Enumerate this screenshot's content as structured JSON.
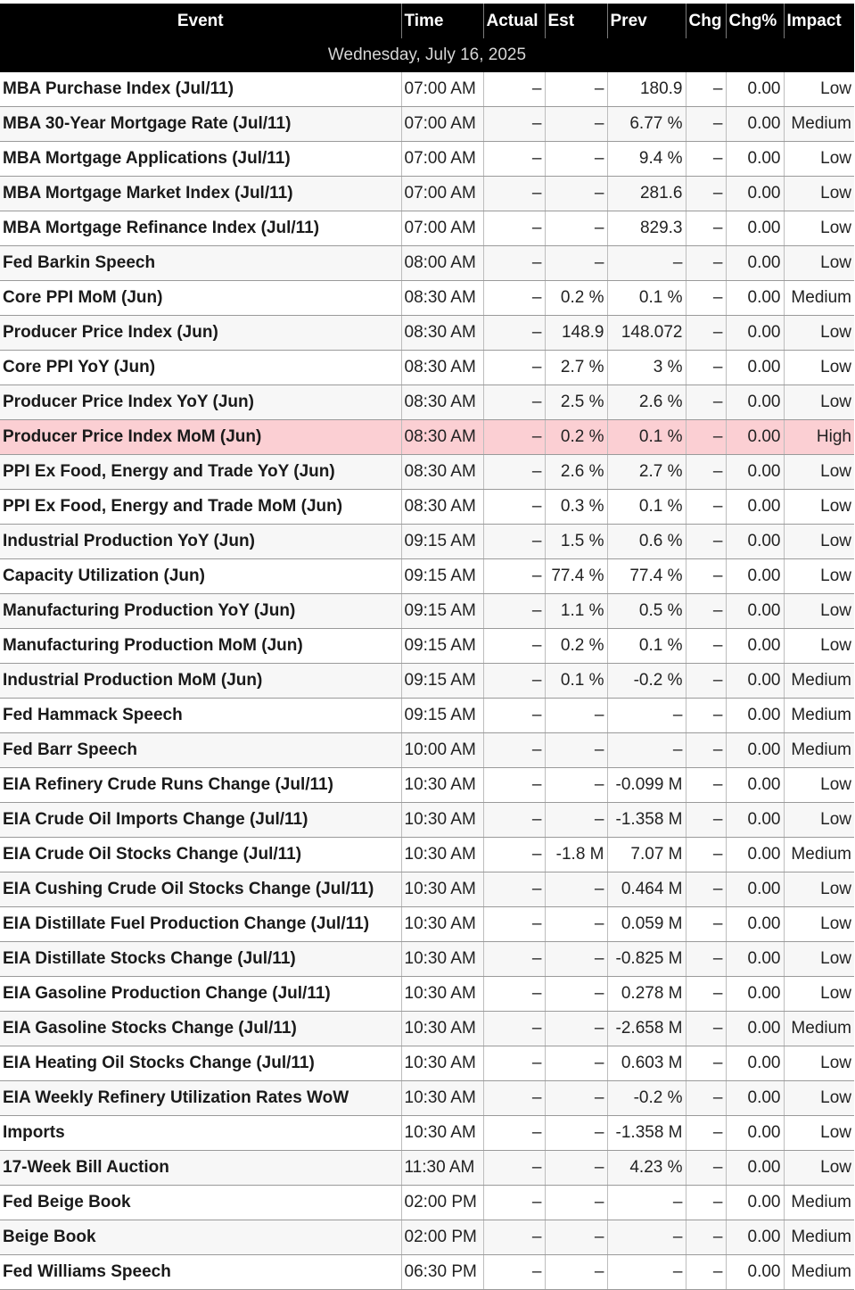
{
  "columns": {
    "event": "Event",
    "time": "Time",
    "actual": "Actual",
    "est": "Est",
    "prev": "Prev",
    "chg": "Chg",
    "chg_pct": "Chg%",
    "impact": "Impact"
  },
  "date_header": "Wednesday, July 16, 2025",
  "highlight_color": "#fbcfd3",
  "rows": [
    {
      "event": "MBA Purchase Index (Jul/11)",
      "time": "07:00 AM",
      "actual": "–",
      "est": "–",
      "prev": "180.9",
      "chg": "–",
      "chg_pct": "0.00",
      "impact": "Low"
    },
    {
      "event": "MBA 30-Year Mortgage Rate (Jul/11)",
      "time": "07:00 AM",
      "actual": "–",
      "est": "–",
      "prev": "6.77 %",
      "chg": "–",
      "chg_pct": "0.00",
      "impact": "Medium"
    },
    {
      "event": "MBA Mortgage Applications (Jul/11)",
      "time": "07:00 AM",
      "actual": "–",
      "est": "–",
      "prev": "9.4 %",
      "chg": "–",
      "chg_pct": "0.00",
      "impact": "Low"
    },
    {
      "event": "MBA Mortgage Market Index (Jul/11)",
      "time": "07:00 AM",
      "actual": "–",
      "est": "–",
      "prev": "281.6",
      "chg": "–",
      "chg_pct": "0.00",
      "impact": "Low"
    },
    {
      "event": "MBA Mortgage Refinance Index (Jul/11)",
      "time": "07:00 AM",
      "actual": "–",
      "est": "–",
      "prev": "829.3",
      "chg": "–",
      "chg_pct": "0.00",
      "impact": "Low"
    },
    {
      "event": "Fed Barkin Speech",
      "time": "08:00 AM",
      "actual": "–",
      "est": "–",
      "prev": "–",
      "chg": "–",
      "chg_pct": "0.00",
      "impact": "Low"
    },
    {
      "event": "Core PPI MoM (Jun)",
      "time": "08:30 AM",
      "actual": "–",
      "est": "0.2 %",
      "prev": "0.1 %",
      "chg": "–",
      "chg_pct": "0.00",
      "impact": "Medium"
    },
    {
      "event": "Producer Price Index (Jun)",
      "time": "08:30 AM",
      "actual": "–",
      "est": "148.9",
      "prev": "148.072",
      "chg": "–",
      "chg_pct": "0.00",
      "impact": "Low"
    },
    {
      "event": "Core PPI YoY (Jun)",
      "time": "08:30 AM",
      "actual": "–",
      "est": "2.7 %",
      "prev": "3 %",
      "chg": "–",
      "chg_pct": "0.00",
      "impact": "Low"
    },
    {
      "event": "Producer Price Index YoY (Jun)",
      "time": "08:30 AM",
      "actual": "–",
      "est": "2.5 %",
      "prev": "2.6 %",
      "chg": "–",
      "chg_pct": "0.00",
      "impact": "Low"
    },
    {
      "event": "Producer Price Index MoM (Jun)",
      "time": "08:30 AM",
      "actual": "–",
      "est": "0.2 %",
      "prev": "0.1 %",
      "chg": "–",
      "chg_pct": "0.00",
      "impact": "High"
    },
    {
      "event": "PPI Ex Food, Energy and Trade YoY (Jun)",
      "time": "08:30 AM",
      "actual": "–",
      "est": "2.6 %",
      "prev": "2.7 %",
      "chg": "–",
      "chg_pct": "0.00",
      "impact": "Low"
    },
    {
      "event": "PPI Ex Food, Energy and Trade MoM (Jun)",
      "time": "08:30 AM",
      "actual": "–",
      "est": "0.3 %",
      "prev": "0.1 %",
      "chg": "–",
      "chg_pct": "0.00",
      "impact": "Low"
    },
    {
      "event": "Industrial Production YoY (Jun)",
      "time": "09:15 AM",
      "actual": "–",
      "est": "1.5 %",
      "prev": "0.6 %",
      "chg": "–",
      "chg_pct": "0.00",
      "impact": "Low"
    },
    {
      "event": "Capacity Utilization (Jun)",
      "time": "09:15 AM",
      "actual": "–",
      "est": "77.4 %",
      "prev": "77.4 %",
      "chg": "–",
      "chg_pct": "0.00",
      "impact": "Low"
    },
    {
      "event": "Manufacturing Production YoY (Jun)",
      "time": "09:15 AM",
      "actual": "–",
      "est": "1.1 %",
      "prev": "0.5 %",
      "chg": "–",
      "chg_pct": "0.00",
      "impact": "Low"
    },
    {
      "event": "Manufacturing Production MoM (Jun)",
      "time": "09:15 AM",
      "actual": "–",
      "est": "0.2 %",
      "prev": "0.1 %",
      "chg": "–",
      "chg_pct": "0.00",
      "impact": "Low"
    },
    {
      "event": "Industrial Production MoM (Jun)",
      "time": "09:15 AM",
      "actual": "–",
      "est": "0.1 %",
      "prev": "-0.2 %",
      "chg": "–",
      "chg_pct": "0.00",
      "impact": "Medium"
    },
    {
      "event": "Fed Hammack Speech",
      "time": "09:15 AM",
      "actual": "–",
      "est": "–",
      "prev": "–",
      "chg": "–",
      "chg_pct": "0.00",
      "impact": "Medium"
    },
    {
      "event": "Fed Barr Speech",
      "time": "10:00 AM",
      "actual": "–",
      "est": "–",
      "prev": "–",
      "chg": "–",
      "chg_pct": "0.00",
      "impact": "Medium"
    },
    {
      "event": "EIA Refinery Crude Runs Change (Jul/11)",
      "time": "10:30 AM",
      "actual": "–",
      "est": "–",
      "prev": "-0.099 M",
      "chg": "–",
      "chg_pct": "0.00",
      "impact": "Low"
    },
    {
      "event": "EIA Crude Oil Imports Change (Jul/11)",
      "time": "10:30 AM",
      "actual": "–",
      "est": "–",
      "prev": "-1.358 M",
      "chg": "–",
      "chg_pct": "0.00",
      "impact": "Low"
    },
    {
      "event": "EIA Crude Oil Stocks Change (Jul/11)",
      "time": "10:30 AM",
      "actual": "–",
      "est": "-1.8 M",
      "prev": "7.07 M",
      "chg": "–",
      "chg_pct": "0.00",
      "impact": "Medium"
    },
    {
      "event": "EIA Cushing Crude Oil Stocks Change (Jul/11)",
      "time": "10:30 AM",
      "actual": "–",
      "est": "–",
      "prev": "0.464 M",
      "chg": "–",
      "chg_pct": "0.00",
      "impact": "Low"
    },
    {
      "event": "EIA Distillate Fuel Production Change (Jul/11)",
      "time": "10:30 AM",
      "actual": "–",
      "est": "–",
      "prev": "0.059 M",
      "chg": "–",
      "chg_pct": "0.00",
      "impact": "Low"
    },
    {
      "event": "EIA Distillate Stocks Change (Jul/11)",
      "time": "10:30 AM",
      "actual": "–",
      "est": "–",
      "prev": "-0.825 M",
      "chg": "–",
      "chg_pct": "0.00",
      "impact": "Low"
    },
    {
      "event": "EIA Gasoline Production Change (Jul/11)",
      "time": "10:30 AM",
      "actual": "–",
      "est": "–",
      "prev": "0.278 M",
      "chg": "–",
      "chg_pct": "0.00",
      "impact": "Low"
    },
    {
      "event": "EIA Gasoline Stocks Change (Jul/11)",
      "time": "10:30 AM",
      "actual": "–",
      "est": "–",
      "prev": "-2.658 M",
      "chg": "–",
      "chg_pct": "0.00",
      "impact": "Medium"
    },
    {
      "event": "EIA Heating Oil Stocks Change (Jul/11)",
      "time": "10:30 AM",
      "actual": "–",
      "est": "–",
      "prev": "0.603 M",
      "chg": "–",
      "chg_pct": "0.00",
      "impact": "Low"
    },
    {
      "event": "EIA Weekly Refinery Utilization Rates WoW",
      "time": "10:30 AM",
      "actual": "–",
      "est": "–",
      "prev": "-0.2 %",
      "chg": "–",
      "chg_pct": "0.00",
      "impact": "Low"
    },
    {
      "event": "Imports",
      "time": "10:30 AM",
      "actual": "–",
      "est": "–",
      "prev": "-1.358 M",
      "chg": "–",
      "chg_pct": "0.00",
      "impact": "Low"
    },
    {
      "event": "17-Week Bill Auction",
      "time": "11:30 AM",
      "actual": "–",
      "est": "–",
      "prev": "4.23 %",
      "chg": "–",
      "chg_pct": "0.00",
      "impact": "Low"
    },
    {
      "event": "Fed Beige Book",
      "time": "02:00 PM",
      "actual": "–",
      "est": "–",
      "prev": "–",
      "chg": "–",
      "chg_pct": "0.00",
      "impact": "Medium"
    },
    {
      "event": "Beige Book",
      "time": "02:00 PM",
      "actual": "–",
      "est": "–",
      "prev": "–",
      "chg": "–",
      "chg_pct": "0.00",
      "impact": "Medium"
    },
    {
      "event": "Fed Williams Speech",
      "time": "06:30 PM",
      "actual": "–",
      "est": "–",
      "prev": "–",
      "chg": "–",
      "chg_pct": "0.00",
      "impact": "Medium"
    }
  ]
}
